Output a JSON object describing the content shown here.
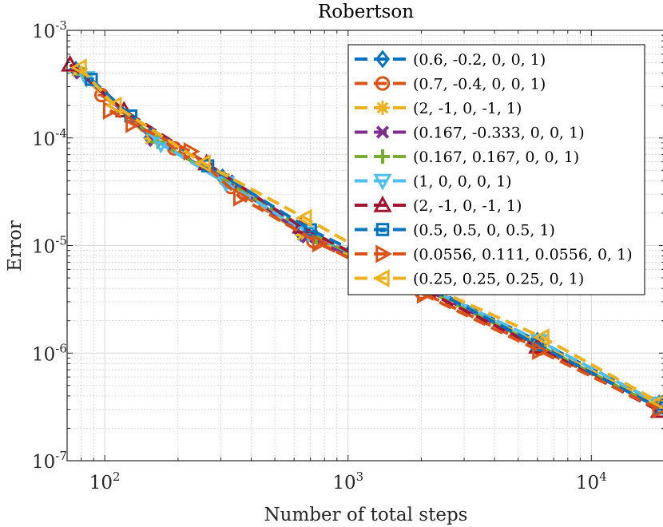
{
  "chart_data": {
    "type": "line",
    "title": "Robertson",
    "xlabel": "Number of total steps",
    "ylabel": "Error",
    "xscale": "log",
    "yscale": "log",
    "xlim": [
      70,
      20000
    ],
    "ylim": [
      1e-07,
      0.001
    ],
    "grid": true,
    "minor_grid": true,
    "legend_position": "top-right",
    "x_ticks": [
      {
        "value": 100,
        "base": "10",
        "exp": "2"
      },
      {
        "value": 1000,
        "base": "10",
        "exp": "3"
      },
      {
        "value": 10000,
        "base": "10",
        "exp": "4"
      }
    ],
    "y_ticks": [
      {
        "value": 1e-07,
        "base": "10",
        "exp": "-7"
      },
      {
        "value": 1e-06,
        "base": "10",
        "exp": "-6"
      },
      {
        "value": 1e-05,
        "base": "10",
        "exp": "-5"
      },
      {
        "value": 0.0001,
        "base": "10",
        "exp": "-4"
      },
      {
        "value": 0.001,
        "base": "10",
        "exp": "-3"
      }
    ],
    "series": [
      {
        "name": "(0.6, -0.2, 0, 0, 1)",
        "color": "#0072BD",
        "marker": "diamond",
        "x": [
          76,
          154,
          305,
          640,
          1900,
          6000,
          19000
        ],
        "y": [
          0.00043,
          0.0001,
          4.3e-05,
          1.3e-05,
          4.7e-06,
          1.3e-06,
          3.4e-07
        ]
      },
      {
        "name": "(0.7, -0.4, 0, 0, 1)",
        "color": "#D95319",
        "marker": "circle-line",
        "x": [
          97,
          193,
          330,
          720,
          2000,
          6100,
          19000
        ],
        "y": [
          0.00025,
          8e-05,
          3.5e-05,
          1.1e-05,
          3.7e-06,
          1.1e-06,
          3.2e-07
        ]
      },
      {
        "name": "(2, -1, 0, -1, 1)",
        "color": "#EDB120",
        "marker": "asterisk",
        "x": [
          77,
          155,
          310,
          650,
          1950,
          6000,
          19000
        ],
        "y": [
          0.00042,
          9.8e-05,
          4.2e-05,
          1.25e-05,
          4.5e-06,
          1.25e-06,
          3.3e-07
        ]
      },
      {
        "name": "(0.167, -0.333, 0, 0, 1)",
        "color": "#7E2F8E",
        "marker": "x",
        "x": [
          80,
          160,
          320,
          680,
          1950,
          6000,
          19000
        ],
        "y": [
          0.0004,
          9.5e-05,
          4e-05,
          1.2e-05,
          4.2e-06,
          1.2e-06,
          3.1e-07
        ]
      },
      {
        "name": "(0.167, 0.167, 0, 0, 1)",
        "color": "#77AC30",
        "marker": "plus",
        "x": [
          82,
          165,
          320,
          740,
          1950,
          6000,
          19000
        ],
        "y": [
          0.00039,
          9.2e-05,
          3.9e-05,
          1.2e-05,
          4.2e-06,
          1.2e-06,
          3.1e-07
        ]
      },
      {
        "name": "(1, 0, 0, 0, 1)",
        "color": "#4DBEEE",
        "marker": "triangle-down",
        "x": [
          84,
          170,
          315,
          690,
          2000,
          6100,
          19000
        ],
        "y": [
          0.00036,
          8.8e-05,
          3.8e-05,
          1.3e-05,
          4.3e-06,
          1.3e-06,
          3.4e-07
        ]
      },
      {
        "name": "(2, -1, 0, -1, 1)",
        "color": "#A2142F",
        "marker": "triangle-up",
        "x": [
          72,
          120,
          262,
          640,
          1900,
          6000,
          19000
        ],
        "y": [
          0.00048,
          0.00018,
          5.8e-05,
          1.5e-05,
          4.2e-06,
          1.15e-06,
          2.9e-07
        ]
      },
      {
        "name": "(0.5, 0.5, 0, 0.5, 1)",
        "color": "#0072BD",
        "marker": "square-line",
        "x": [
          88,
          128,
          265,
          700,
          2000,
          6000,
          19000
        ],
        "y": [
          0.00035,
          0.00016,
          5.5e-05,
          1.4e-05,
          4.4e-06,
          1.2e-06,
          3.1e-07
        ]
      },
      {
        "name": "(0.0556, 0.111, 0.0556, 0, 1)",
        "color": "#D95319",
        "marker": "triangle-right",
        "x": [
          105,
          130,
          225,
          360,
          760,
          2050,
          6100,
          19000
        ],
        "y": [
          0.00018,
          0.000135,
          7.5e-05,
          2.8e-05,
          1.05e-05,
          3.5e-06,
          1.05e-06,
          3e-07
        ]
      },
      {
        "name": "(0.25, 0.25, 0.25, 0, 1)",
        "color": "#EDB120",
        "marker": "triangle-left",
        "x": [
          79,
          110,
          255,
          665,
          2000,
          6300,
          19000
        ],
        "y": [
          0.00045,
          0.0002,
          5.8e-05,
          1.8e-05,
          4.5e-06,
          1.4e-06,
          3.5e-07
        ]
      }
    ]
  }
}
